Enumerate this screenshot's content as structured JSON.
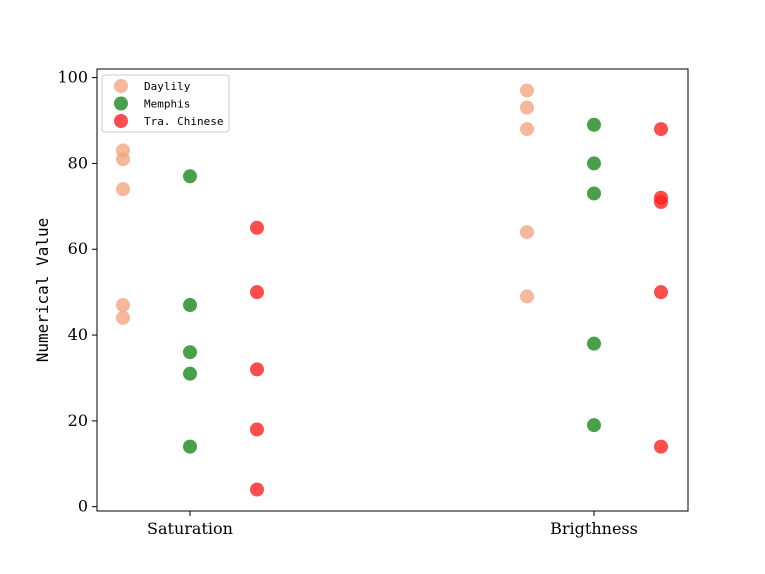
{
  "chart_data": {
    "type": "scatter",
    "title": "",
    "xlabel": "",
    "ylabel": "Numerical Value",
    "categories": [
      "Saturation",
      "Brigthness"
    ],
    "ylim": [
      -1,
      102
    ],
    "yticks": [
      0,
      20,
      40,
      60,
      80,
      100
    ],
    "grid": false,
    "legend_position": "top-left",
    "series": [
      {
        "name": "Daylily",
        "color": "#f4a582",
        "points": [
          {
            "category": "Saturation",
            "values": [
              83,
              81,
              74,
              47,
              44
            ]
          },
          {
            "category": "Brigthness",
            "values": [
              97,
              93,
              88,
              64,
              49
            ]
          }
        ]
      },
      {
        "name": "Memphis",
        "color": "#1a8a1a",
        "points": [
          {
            "category": "Saturation",
            "values": [
              77,
              47,
              36,
              31,
              14
            ]
          },
          {
            "category": "Brigthness",
            "values": [
              89,
              80,
              73,
              38,
              19
            ]
          }
        ]
      },
      {
        "name": "Tra. Chinese",
        "color": "#ff2020",
        "points": [
          {
            "category": "Saturation",
            "values": [
              65,
              50,
              32,
              18,
              4
            ]
          },
          {
            "category": "Brigthness",
            "values": [
              88,
              72,
              71,
              50,
              14
            ]
          }
        ]
      }
    ]
  }
}
